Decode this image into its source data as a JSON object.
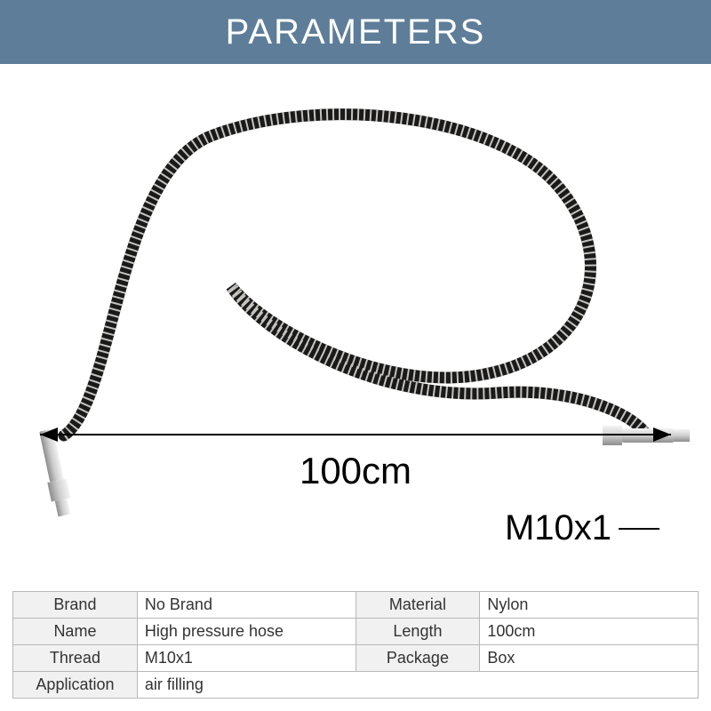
{
  "header": {
    "title": "PARAMETERS",
    "bg_color": "#5e7d99",
    "text_color": "#ffffff",
    "font_size": 40
  },
  "product": {
    "hose_color": "#1a1a1a",
    "spring_color": "#d4d2cd",
    "fitting_color": "#e2e2e2",
    "fitting_shadow": "#9a9a9a",
    "length_label": "100cm",
    "thread_label": "M10x1"
  },
  "specs": {
    "rows": [
      {
        "l1": "Brand",
        "v1": "No Brand",
        "l2": "Material",
        "v2": "Nylon"
      },
      {
        "l1": "Name",
        "v1": "High pressure hose",
        "l2": "Length",
        "v2": "100cm"
      },
      {
        "l1": "Thread",
        "v1": "M10x1",
        "l2": "Package",
        "v2": "Box"
      },
      {
        "l1": "Application",
        "v1": "air filling",
        "l2": "",
        "v2": ""
      }
    ],
    "border_color": "#b8b8b8",
    "label_bg": "#f1f1f1",
    "value_bg": "#ffffff",
    "font_size": 18
  }
}
